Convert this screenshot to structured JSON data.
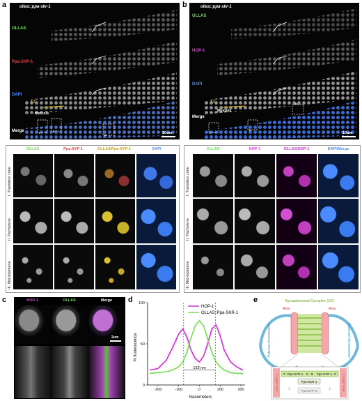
{
  "panel_a": {
    "letter": "a",
    "title": "ollas::ppa-skr-1",
    "channels": [
      "OLLAS",
      "Ppa-SYP-1",
      "DAPI",
      "Merge"
    ],
    "channel_colors": [
      "#6fe05a",
      "#ff3a3a",
      "#4a8cff",
      "#ffffff"
    ],
    "tz_label": "T.Z",
    "meiosis_label": "Meiosis",
    "roi_labels": [
      "i",
      "ii",
      "iii"
    ],
    "scale": "10um"
  },
  "panel_b": {
    "letter": "b",
    "title": "ollas::ppa-skr-1",
    "channels": [
      "OLLAS",
      "HOP-1",
      "DAPI",
      "Merge"
    ],
    "channel_colors": [
      "#6fe05a",
      "#e040e0",
      "#4a8cff",
      "#ffffff"
    ],
    "tz_label": "T.Z",
    "meiosis_label": "Meiosis",
    "roi_labels": [
      "i",
      "ii",
      "iii"
    ],
    "scale": "10um"
  },
  "grid_left": {
    "headers": [
      "OLLAS",
      "Ppa-SYP-1",
      "OLLAS/Ppa-SYP-1",
      "DAPI"
    ],
    "rows": [
      "I. Transition zone",
      "II. Pachytene",
      "III. Mid-diplotene"
    ]
  },
  "grid_right": {
    "headers": [
      "OLLAS",
      "HOP-1",
      "OLLAS/HOP-1",
      "DAPI/Merge"
    ],
    "rows": [
      "I. Transition zone",
      "II. Pachytene",
      "III. Mid-diplotene"
    ]
  },
  "panel_c": {
    "letter": "c",
    "headers": [
      "HOP-1",
      "OLLAS",
      "Merge"
    ],
    "scale": "2um"
  },
  "chart_data": {
    "type": "line",
    "title": "",
    "xlabel": "Nanometers",
    "ylabel": "% fluorescence",
    "xlim": [
      -250,
      220
    ],
    "ylim": [
      0,
      100
    ],
    "xticks": [
      -200,
      -100,
      0,
      100,
      200
    ],
    "yticks": [
      0,
      50,
      100
    ],
    "annotation": "153 nm",
    "dashed_lines_x": [
      -76,
      77
    ],
    "legend_position": "top-right",
    "series": [
      {
        "name": "HOP-1",
        "color": "#cc33cc",
        "x": [
          -240,
          -200,
          -160,
          -130,
          -100,
          -80,
          -60,
          -40,
          -20,
          0,
          20,
          40,
          60,
          80,
          100,
          120,
          150,
          180,
          210
        ],
        "y": [
          18,
          20,
          30,
          45,
          62,
          68,
          58,
          42,
          32,
          28,
          35,
          50,
          68,
          73,
          60,
          42,
          28,
          22,
          18
        ]
      },
      {
        "name": "OLLAS::Ppa-SKR-1",
        "color": "#77dd55",
        "x": [
          -240,
          -200,
          -160,
          -130,
          -100,
          -80,
          -60,
          -40,
          -20,
          0,
          20,
          40,
          60,
          80,
          100,
          120,
          150,
          180,
          210
        ],
        "y": [
          14,
          15,
          16,
          18,
          22,
          28,
          40,
          58,
          72,
          78,
          72,
          56,
          40,
          28,
          22,
          18,
          15,
          14,
          14
        ]
      }
    ]
  },
  "panel_d": {
    "letter": "d"
  },
  "panel_e": {
    "letter": "e",
    "sc_title": "Synaptonemal Complex (SC)",
    "axis_left": "Axis",
    "axis_right": "Axis",
    "paternal": "Paternal chromosome",
    "maternal": "Maternal chromosome",
    "hop_left": "HOP-1/HTP-1",
    "hop_right": "HOP-1/HTP-1",
    "box_labels": [
      "C",
      "Ppa-SYP-1",
      "N",
      "N",
      "Ppa-SYP-1",
      "C",
      "Ppa-SKR-1",
      "Ppa-SYP-4"
    ],
    "question": "?"
  }
}
